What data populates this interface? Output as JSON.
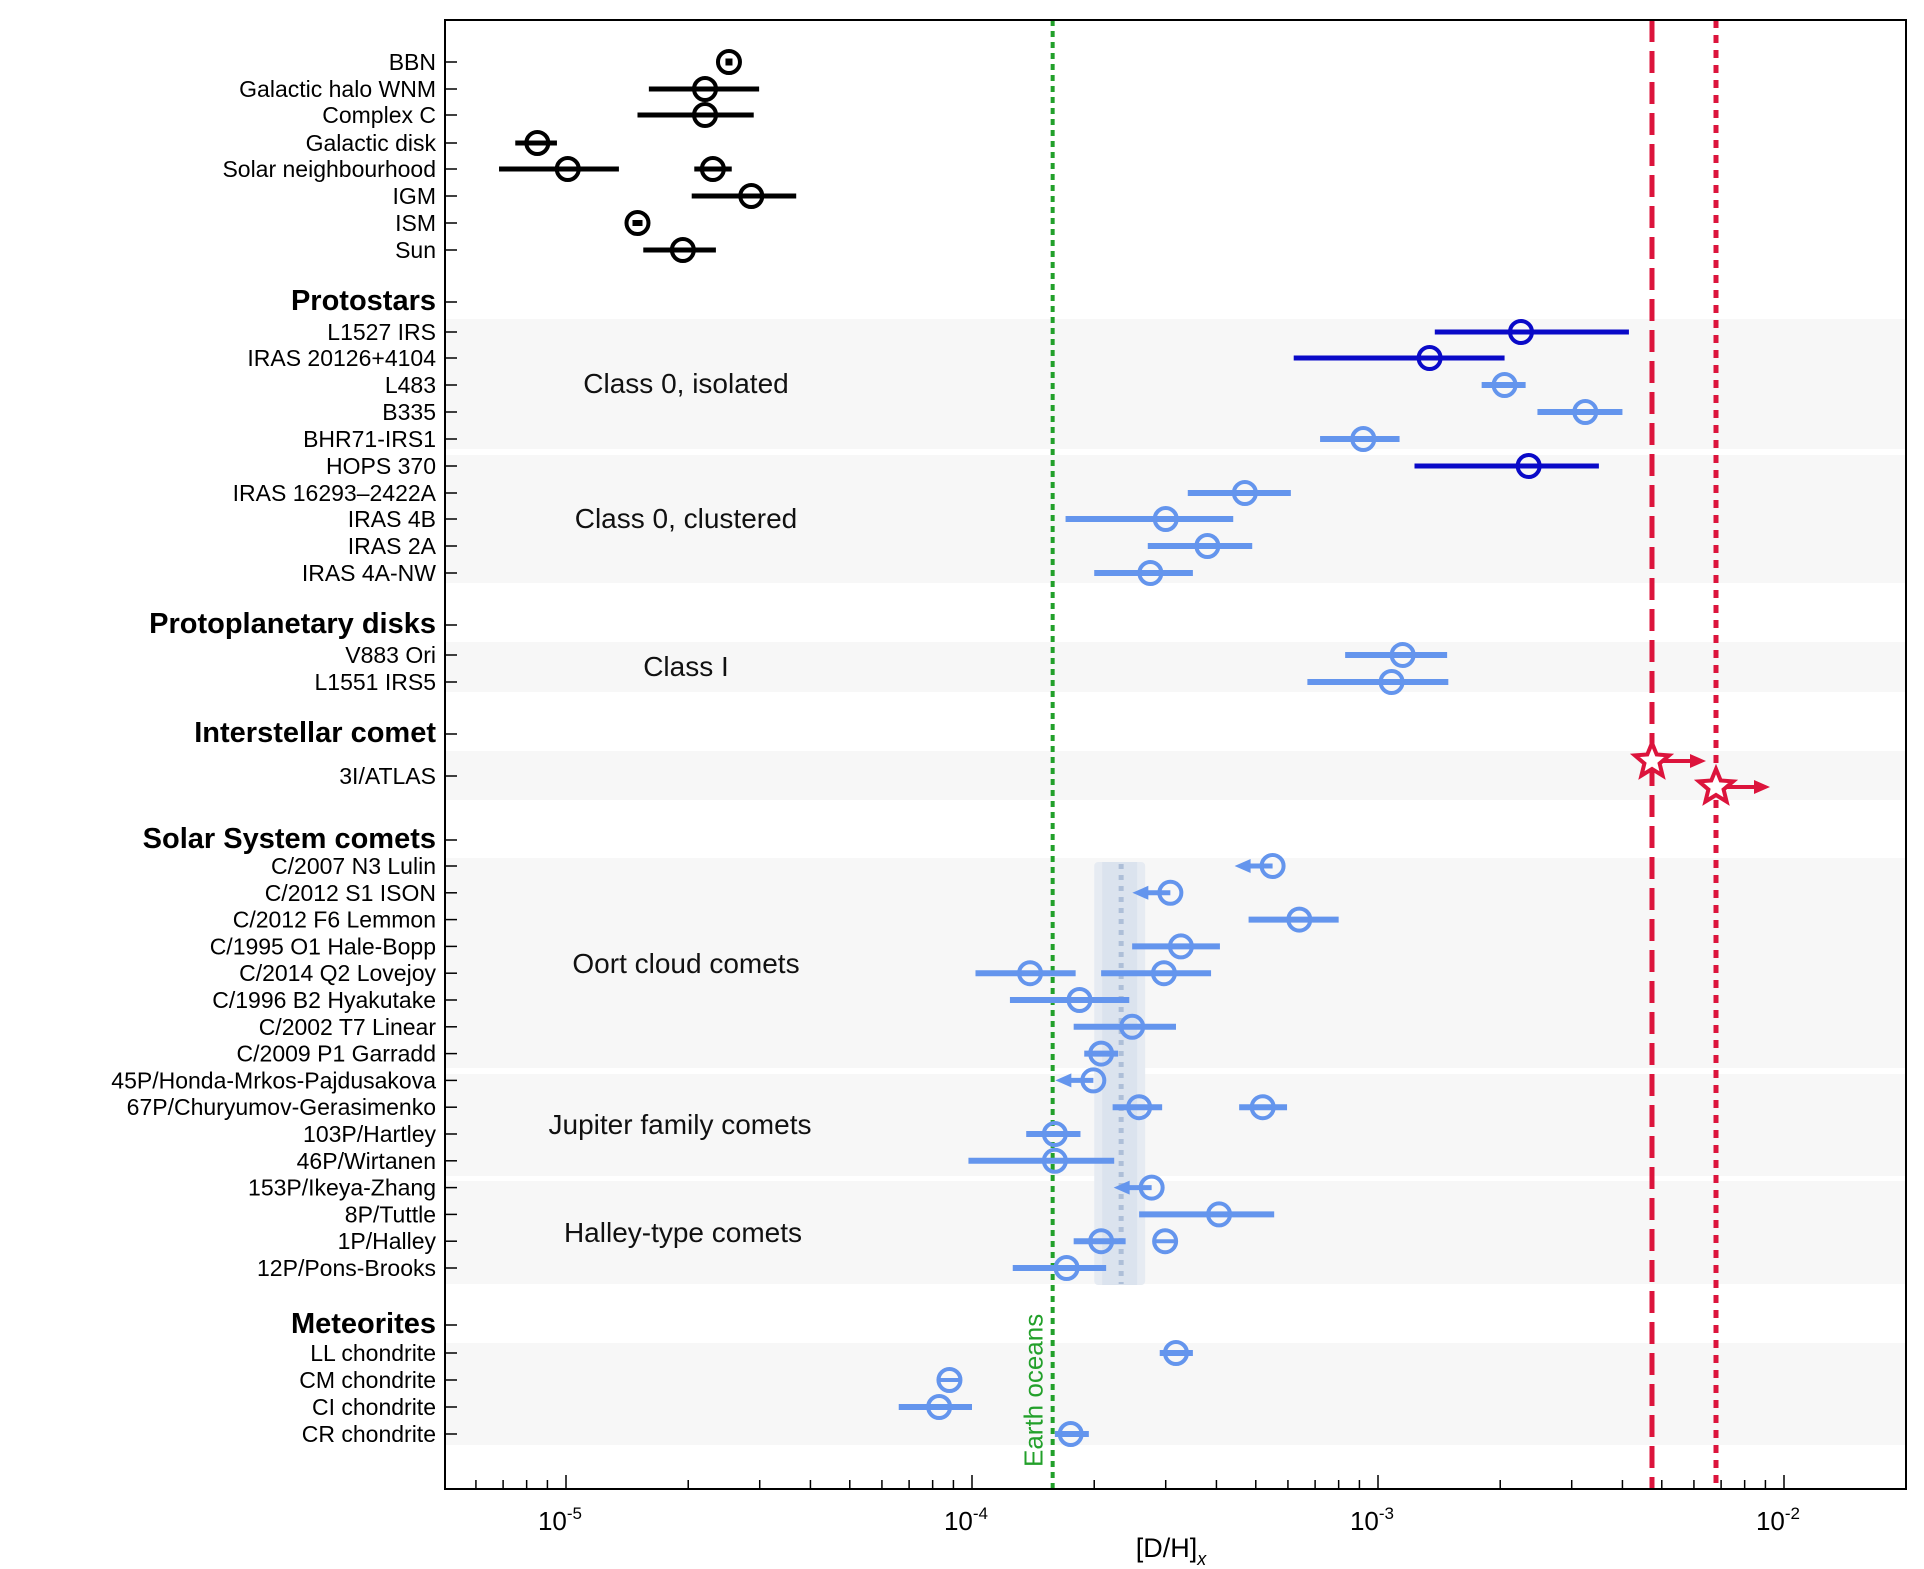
{
  "chart_data": {
    "type": "scatter",
    "x_scale": "log",
    "xlim": [
      5e-06,
      0.02
    ],
    "xlabel": "[D/H]",
    "xlabel_subscript": "x",
    "grid": false,
    "xticks": [
      {
        "value": 1e-05,
        "base": "10",
        "exp": "-5"
      },
      {
        "value": 0.0001,
        "base": "10",
        "exp": "-4"
      },
      {
        "value": 0.001,
        "base": "10",
        "exp": "-3"
      },
      {
        "value": 0.01,
        "base": "10",
        "exp": "-2"
      }
    ],
    "colors": {
      "reference": "#000000",
      "protostar_isolated": "#0a0ac8",
      "measured": "#6495ed",
      "interstellar": "#dc143c",
      "earth": "#22a02a"
    },
    "rows": [
      {
        "label": "BBN"
      },
      {
        "label": "Galactic halo WNM"
      },
      {
        "label": "Complex C"
      },
      {
        "label": "Galactic disk"
      },
      {
        "label": "Solar neighbourhood"
      },
      {
        "label": "IGM"
      },
      {
        "label": "ISM"
      },
      {
        "label": "Sun"
      },
      {
        "label": "Protostars",
        "heading": true
      },
      {
        "label": "L1527 IRS"
      },
      {
        "label": "IRAS 20126+4104"
      },
      {
        "label": "L483"
      },
      {
        "label": "B335"
      },
      {
        "label": "BHR71-IRS1"
      },
      {
        "label": "HOPS 370"
      },
      {
        "label": "IRAS 16293–2422A"
      },
      {
        "label": "IRAS 4B"
      },
      {
        "label": "IRAS 2A"
      },
      {
        "label": "IRAS 4A-NW"
      },
      {
        "label": "Protoplanetary disks",
        "heading": true
      },
      {
        "label": "V883 Ori"
      },
      {
        "label": "L1551 IRS5"
      },
      {
        "label": "Interstellar comet",
        "heading": true
      },
      {
        "label": "3I/ATLAS"
      },
      {
        "label": "Solar System comets",
        "heading": true
      },
      {
        "label": "C/2007 N3 Lulin"
      },
      {
        "label": "C/2012 S1 ISON"
      },
      {
        "label": "C/2012 F6 Lemmon"
      },
      {
        "label": "C/1995 O1 Hale-Bopp"
      },
      {
        "label": "C/2014 Q2 Lovejoy"
      },
      {
        "label": "C/1996 B2 Hyakutake"
      },
      {
        "label": "C/2002 T7 Linear"
      },
      {
        "label": "C/2009 P1 Garradd"
      },
      {
        "label": "45P/Honda-Mrkos-Pajdusakova"
      },
      {
        "label": "67P/Churyumov-Gerasimenko"
      },
      {
        "label": "103P/Hartley"
      },
      {
        "label": "46P/Wirtanen"
      },
      {
        "label": "153P/Ikeya-Zhang"
      },
      {
        "label": "8P/Tuttle"
      },
      {
        "label": "1P/Halley"
      },
      {
        "label": "12P/Pons-Brooks"
      },
      {
        "label": "Meteorites",
        "heading": true
      },
      {
        "label": "LL chondrite"
      },
      {
        "label": "CM chondrite"
      },
      {
        "label": "CI chondrite"
      },
      {
        "label": "CR chondrite"
      }
    ],
    "groups": [
      {
        "label": "Class 0, isolated"
      },
      {
        "label": "Class 0, clustered"
      },
      {
        "label": "Class I"
      },
      {
        "label": "Oort cloud comets"
      },
      {
        "label": "Jupiter family comets"
      },
      {
        "label": "Halley-type comets"
      }
    ],
    "points": [
      {
        "row": 0,
        "value": 2.52e-05,
        "color": "reference",
        "marker": "circle-dot"
      },
      {
        "row": 1,
        "value": 2.2e-05,
        "lo": 1.6e-05,
        "hi": 2.99e-05,
        "color": "reference"
      },
      {
        "row": 2,
        "value": 2.2e-05,
        "lo": 1.5e-05,
        "hi": 2.9e-05,
        "color": "reference"
      },
      {
        "row": 3,
        "value": 8.5e-06,
        "lo": 7.5e-06,
        "hi": 9.5e-06,
        "color": "reference"
      },
      {
        "row": 4,
        "value": 1.01e-05,
        "lo": 6.84e-06,
        "hi": 1.35e-05,
        "color": "reference"
      },
      {
        "row": 4,
        "value": 2.3e-05,
        "lo": 2.07e-05,
        "hi": 2.56e-05,
        "color": "reference"
      },
      {
        "row": 5,
        "value": 2.86e-05,
        "lo": 2.04e-05,
        "hi": 3.69e-05,
        "color": "reference"
      },
      {
        "row": 6,
        "value": 1.5e-05,
        "color": "reference",
        "marker": "circle-dash"
      },
      {
        "row": 7,
        "value": 1.94e-05,
        "lo": 1.55e-05,
        "hi": 2.34e-05,
        "color": "reference"
      },
      {
        "row": 9,
        "value": 0.00225,
        "lo": 0.00138,
        "hi": 0.00415,
        "color": "protostar_isolated"
      },
      {
        "row": 10,
        "value": 0.00134,
        "lo": 0.00062,
        "hi": 0.00205,
        "color": "protostar_isolated"
      },
      {
        "row": 11,
        "value": 0.00205,
        "lo": 0.0018,
        "hi": 0.00231,
        "color": "measured"
      },
      {
        "row": 12,
        "value": 0.00324,
        "lo": 0.00247,
        "hi": 0.004,
        "color": "measured"
      },
      {
        "row": 13,
        "value": 0.00092,
        "lo": 0.00072,
        "hi": 0.00113,
        "color": "measured"
      },
      {
        "row": 14,
        "value": 0.00235,
        "lo": 0.00123,
        "hi": 0.0035,
        "color": "protostar_isolated"
      },
      {
        "row": 15,
        "value": 0.00047,
        "lo": 0.00034,
        "hi": 0.00061,
        "color": "measured"
      },
      {
        "row": 16,
        "value": 0.0003,
        "lo": 0.00017,
        "hi": 0.00044,
        "color": "measured"
      },
      {
        "row": 17,
        "value": 0.00038,
        "lo": 0.000271,
        "hi": 0.00049,
        "color": "measured"
      },
      {
        "row": 18,
        "value": 0.000275,
        "lo": 0.0002,
        "hi": 0.00035,
        "color": "measured"
      },
      {
        "row": 20,
        "value": 0.00115,
        "lo": 0.00083,
        "hi": 0.00148,
        "color": "measured"
      },
      {
        "row": 21,
        "value": 0.00108,
        "lo": 0.00067,
        "hi": 0.00149,
        "color": "measured"
      },
      {
        "row": 23,
        "value": 0.00473,
        "color": "interstellar",
        "marker": "star",
        "limit": "lower"
      },
      {
        "row": 23,
        "value": 0.0068,
        "color": "interstellar",
        "marker": "star",
        "limit": "lower"
      },
      {
        "row": 25,
        "value": 0.00055,
        "color": "measured",
        "limit": "upper"
      },
      {
        "row": 26,
        "value": 0.000308,
        "color": "measured",
        "limit": "upper"
      },
      {
        "row": 27,
        "value": 0.00064,
        "lo": 0.00048,
        "hi": 0.0008,
        "color": "measured"
      },
      {
        "row": 28,
        "value": 0.000327,
        "lo": 0.000248,
        "hi": 0.000408,
        "color": "measured"
      },
      {
        "row": 29,
        "value": 0.000139,
        "lo": 0.000102,
        "hi": 0.00018,
        "color": "measured"
      },
      {
        "row": 29,
        "value": 0.000297,
        "lo": 0.000208,
        "hi": 0.000388,
        "color": "measured"
      },
      {
        "row": 30,
        "value": 0.000184,
        "lo": 0.000124,
        "hi": 0.000244,
        "color": "measured"
      },
      {
        "row": 31,
        "value": 0.000248,
        "lo": 0.000178,
        "hi": 0.000318,
        "color": "measured"
      },
      {
        "row": 32,
        "value": 0.000208,
        "lo": 0.000189,
        "hi": 0.000229,
        "color": "measured"
      },
      {
        "row": 33,
        "value": 0.000199,
        "color": "measured",
        "limit": "upper"
      },
      {
        "row": 34,
        "value": 0.000258,
        "lo": 0.000222,
        "hi": 0.000294,
        "color": "measured"
      },
      {
        "row": 34,
        "value": 0.00052,
        "lo": 0.000455,
        "hi": 0.000597,
        "color": "measured"
      },
      {
        "row": 35,
        "value": 0.00016,
        "lo": 0.000136,
        "hi": 0.000185,
        "color": "measured"
      },
      {
        "row": 36,
        "value": 0.00016,
        "lo": 9.8e-05,
        "hi": 0.000224,
        "color": "measured"
      },
      {
        "row": 37,
        "value": 0.000277,
        "color": "measured",
        "limit": "upper"
      },
      {
        "row": 38,
        "value": 0.000406,
        "lo": 0.000258,
        "hi": 0.000555,
        "color": "measured"
      },
      {
        "row": 39,
        "value": 0.000208,
        "lo": 0.000178,
        "hi": 0.000239,
        "color": "measured"
      },
      {
        "row": 39,
        "value": 0.000299,
        "color": "measured"
      },
      {
        "row": 40,
        "value": 0.000171,
        "lo": 0.000126,
        "hi": 0.000214,
        "color": "measured"
      },
      {
        "row": 42,
        "value": 0.000318,
        "lo": 0.00029,
        "hi": 0.00035,
        "color": "measured"
      },
      {
        "row": 43,
        "value": 8.8e-05,
        "color": "measured"
      },
      {
        "row": 44,
        "value": 8.3e-05,
        "lo": 6.6e-05,
        "hi": 0.0001,
        "color": "measured"
      },
      {
        "row": 45,
        "value": 0.000175,
        "lo": 0.00016,
        "hi": 0.000194,
        "color": "measured"
      }
    ],
    "comet_average_band": {
      "lo": 0.0002,
      "hi": 0.000267,
      "center": 0.000233
    },
    "reference_lines": [
      {
        "label": "Earth oceans",
        "value": 0.000158,
        "color": "earth",
        "style": "dotted"
      },
      {
        "label": "",
        "value": 0.00473,
        "color": "interstellar",
        "style": "dashed"
      },
      {
        "label": "",
        "value": 0.0068,
        "color": "interstellar",
        "style": "dotted"
      }
    ]
  }
}
